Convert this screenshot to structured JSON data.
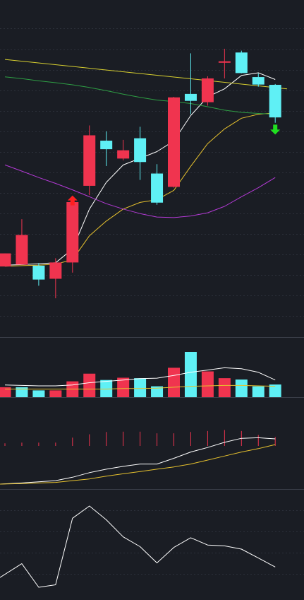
{
  "colors": {
    "background": "#1a1d24",
    "up": "#f0344f",
    "down": "#5ff0f5",
    "ma_white": "#ffffff",
    "ma_yellow": "#e6c12e",
    "ma_green": "#2e9e44",
    "ma_purple": "#b43ad6",
    "ma_long_yellow": "#d8d030",
    "buy_arrow": "#ff2020",
    "sell_arrow": "#20e020"
  },
  "chart_data": [
    {
      "type": "candlestick",
      "panel": "price",
      "grid": true,
      "ylim": [
        0,
        100
      ],
      "candles": [
        {
          "x": 0,
          "open": 18.5,
          "close": 23.4,
          "high": 23.4,
          "low": 18.5
        },
        {
          "x": 1,
          "open": 19.2,
          "close": 30.3,
          "high": 36.2,
          "low": 19.2
        },
        {
          "x": 2,
          "open": 18.8,
          "close": 13.6,
          "high": 19.8,
          "low": 11.3
        },
        {
          "x": 3,
          "open": 13.9,
          "close": 20.0,
          "high": 21.6,
          "low": 6.6
        },
        {
          "x": 4,
          "open": 20.0,
          "close": 42.6,
          "high": 42.9,
          "low": 16.2
        },
        {
          "x": 5,
          "open": 48.7,
          "close": 67.6,
          "high": 71.3,
          "low": 45.2
        },
        {
          "x": 6,
          "open": 65.6,
          "close": 62.4,
          "high": 69.1,
          "low": 56.1
        },
        {
          "x": 7,
          "open": 58.9,
          "close": 62.0,
          "high": 65.9,
          "low": 58.2
        },
        {
          "x": 8,
          "open": 66.5,
          "close": 57.6,
          "high": 70.8,
          "low": 50.9
        },
        {
          "x": 9,
          "open": 53.3,
          "close": 42.4,
          "high": 56.8,
          "low": 41.6
        },
        {
          "x": 10,
          "open": 48.3,
          "close": 81.8,
          "high": 82.0,
          "low": 48.0
        },
        {
          "x": 11,
          "open": 83.1,
          "close": 80.5,
          "high": 98.3,
          "low": 75.5
        },
        {
          "x": 12,
          "open": 80.0,
          "close": 88.9,
          "high": 89.7,
          "low": 78.7
        },
        {
          "x": 13,
          "open": 95.3,
          "close": 95.3,
          "high": 100.0,
          "low": 88.9
        },
        {
          "x": 14,
          "open": 98.6,
          "close": 90.9,
          "high": 99.3,
          "low": 90.8
        },
        {
          "x": 15,
          "open": 89.4,
          "close": 86.6,
          "high": 90.8,
          "low": 85.8
        },
        {
          "x": 16,
          "open": 86.5,
          "close": 74.3,
          "high": 86.8,
          "low": 72.3
        }
      ],
      "overlays": [
        {
          "name": "",
          "color_key": "ma_white",
          "x": [
            0,
            1,
            2,
            3,
            4,
            5,
            6,
            7,
            8,
            9,
            10,
            11,
            12,
            13,
            14,
            15,
            16
          ],
          "y": [
            19.0,
            19.2,
            19.5,
            19.9,
            25.0,
            40.0,
            50.0,
            56.5,
            59.0,
            61.5,
            65.5,
            75.0,
            82.0,
            85.0,
            90.0,
            91.0,
            88.5
          ]
        },
        {
          "name": "",
          "color_key": "ma_yellow",
          "x": [
            0,
            1,
            2,
            3,
            4,
            5,
            6,
            7,
            8,
            9,
            10,
            11,
            12,
            13,
            14,
            15,
            16
          ],
          "y": [
            18.6,
            18.8,
            19.0,
            19.4,
            21.0,
            30.0,
            35.5,
            40.0,
            42.5,
            43.5,
            47.0,
            56.0,
            64.5,
            70.0,
            74.0,
            75.5,
            76.0
          ]
        },
        {
          "name": "",
          "color_key": "ma_green",
          "x": [
            0,
            1,
            2,
            3,
            4,
            5,
            6,
            7,
            8,
            9,
            10,
            11,
            12,
            13,
            14,
            15,
            16
          ],
          "y": [
            89.5,
            88.8,
            88.0,
            87.3,
            86.5,
            85.5,
            84.3,
            83.0,
            81.8,
            80.8,
            80.2,
            79.5,
            78.3,
            77.0,
            76.2,
            75.8,
            75.5
          ]
        },
        {
          "name": "",
          "color_key": "ma_purple",
          "x": [
            0,
            1,
            2,
            3,
            4,
            5,
            6,
            7,
            8,
            9,
            10,
            11,
            12,
            13,
            14,
            15,
            16
          ],
          "y": [
            56.5,
            54.2,
            51.8,
            49.6,
            47.2,
            44.6,
            42.0,
            40.0,
            38.3,
            37.0,
            36.8,
            37.4,
            38.6,
            41.0,
            44.6,
            48.0,
            51.8
          ]
        },
        {
          "name": "",
          "color_key": "ma_long_yellow",
          "x": [
            0,
            16.7
          ],
          "y": [
            96.0,
            85.0
          ]
        }
      ],
      "signals": [
        {
          "x": 4,
          "type": "buy",
          "value": 43.5
        },
        {
          "x": 16,
          "type": "sell",
          "value": 70.0
        }
      ]
    },
    {
      "type": "bar",
      "panel": "volume",
      "grid": false,
      "ylim": [
        0,
        100
      ],
      "x": [
        0,
        1,
        2,
        3,
        4,
        5,
        6,
        7,
        8,
        9,
        10,
        11,
        12,
        13,
        14,
        15,
        16
      ],
      "values": [
        22,
        22,
        15,
        15,
        35,
        52,
        38,
        43,
        42,
        24,
        65,
        100,
        57,
        42,
        39,
        24,
        28
      ],
      "direction": [
        "up",
        "down",
        "down",
        "up",
        "up",
        "up",
        "down",
        "up",
        "down",
        "down",
        "up",
        "down",
        "up",
        "up",
        "down",
        "down",
        "down"
      ],
      "overlays": [
        {
          "name": "",
          "color_key": "ma_white",
          "x": [
            0,
            1,
            2,
            3,
            4,
            5,
            6,
            7,
            8,
            9,
            10,
            11,
            12,
            13,
            14,
            15,
            16
          ],
          "y": [
            27,
            26,
            25,
            25,
            27,
            32,
            35,
            38,
            41,
            42,
            48,
            55,
            60,
            65,
            63,
            55,
            38
          ]
        },
        {
          "name": "",
          "color_key": "ma_yellow",
          "x": [
            0,
            1,
            2,
            3,
            4,
            5,
            6,
            7,
            8,
            9,
            10,
            11,
            12,
            13,
            14,
            15,
            16
          ],
          "y": [
            18,
            18,
            18,
            18,
            18,
            18,
            18,
            19,
            19,
            20,
            22,
            24,
            25,
            26,
            26,
            25,
            24
          ]
        }
      ]
    },
    {
      "type": "bar",
      "panel": "indicator",
      "grid": false,
      "ylim": [
        0,
        100
      ],
      "x": [
        0,
        1,
        2,
        3,
        4,
        5,
        6,
        7,
        8,
        9,
        10,
        11,
        12,
        13,
        14,
        15,
        16
      ],
      "values": [
        8,
        10,
        10,
        10,
        25,
        35,
        42,
        43,
        43,
        38,
        38,
        42,
        45,
        48,
        45,
        33,
        27
      ],
      "overlays": [
        {
          "name": "",
          "color_key": "ma_white",
          "x": [
            -0.3,
            1,
            2,
            3,
            4,
            5,
            6,
            7,
            8,
            9,
            10,
            11,
            12,
            13,
            14,
            15,
            16
          ],
          "y": [
            0,
            2,
            4,
            6,
            12,
            20,
            26,
            31,
            35,
            35,
            45,
            56,
            64,
            73,
            80,
            81,
            79
          ]
        },
        {
          "name": "",
          "color_key": "ma_yellow",
          "x": [
            -0.3,
            1,
            2,
            3,
            4,
            5,
            6,
            7,
            8,
            9,
            10,
            11,
            12,
            13,
            14,
            15,
            16
          ],
          "y": [
            0,
            1,
            2,
            3,
            6,
            9,
            14,
            18,
            22,
            26,
            30,
            35,
            42,
            49,
            56,
            62,
            69
          ]
        }
      ]
    },
    {
      "type": "line",
      "panel": "oscillator",
      "grid": true,
      "ylim": [
        0,
        100
      ],
      "x": [
        -0.3,
        1,
        2,
        3,
        4,
        5,
        6,
        7,
        8,
        9,
        10,
        11,
        12,
        13,
        14,
        15,
        16
      ],
      "y": [
        12,
        29,
        0,
        3,
        85,
        100,
        83,
        62,
        50,
        30,
        49,
        61,
        52,
        51,
        47,
        36,
        25
      ]
    }
  ]
}
